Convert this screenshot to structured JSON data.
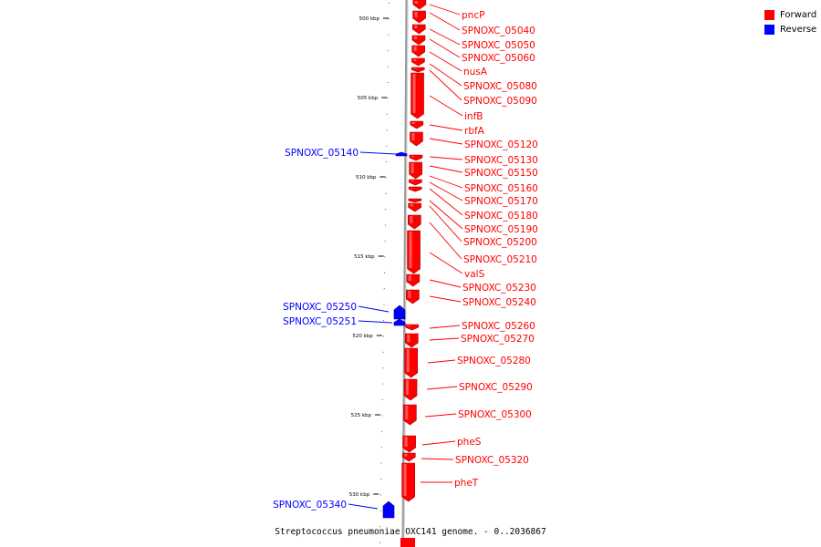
{
  "legend": {
    "forward": {
      "label": "Forward",
      "color": "#ff0000"
    },
    "reverse": {
      "label": "Reverse",
      "color": "#0000ff"
    }
  },
  "caption": "Streptococcus pneumoniae OXC141 genome. - 0..2036867",
  "scale": {
    "unit": "kbp",
    "ticks": [
      500,
      505,
      510,
      515,
      520,
      525,
      530
    ]
  },
  "genes": [
    {
      "name": "pncP",
      "strand": "forward"
    },
    {
      "name": "SPNOXC_05040",
      "strand": "forward"
    },
    {
      "name": "SPNOXC_05050",
      "strand": "forward"
    },
    {
      "name": "SPNOXC_05060",
      "strand": "forward"
    },
    {
      "name": "nusA",
      "strand": "forward"
    },
    {
      "name": "SPNOXC_05080",
      "strand": "forward"
    },
    {
      "name": "SPNOXC_05090",
      "strand": "forward"
    },
    {
      "name": "infB",
      "strand": "forward"
    },
    {
      "name": "rbfA",
      "strand": "forward"
    },
    {
      "name": "SPNOXC_05120",
      "strand": "forward"
    },
    {
      "name": "SPNOXC_05130",
      "strand": "forward"
    },
    {
      "name": "SPNOXC_05150",
      "strand": "forward"
    },
    {
      "name": "SPNOXC_05160",
      "strand": "forward"
    },
    {
      "name": "SPNOXC_05170",
      "strand": "forward"
    },
    {
      "name": "SPNOXC_05180",
      "strand": "forward"
    },
    {
      "name": "SPNOXC_05190",
      "strand": "forward"
    },
    {
      "name": "SPNOXC_05200",
      "strand": "forward"
    },
    {
      "name": "SPNOXC_05210",
      "strand": "forward"
    },
    {
      "name": "valS",
      "strand": "forward"
    },
    {
      "name": "SPNOXC_05230",
      "strand": "forward"
    },
    {
      "name": "SPNOXC_05240",
      "strand": "forward"
    },
    {
      "name": "SPNOXC_05260",
      "strand": "forward"
    },
    {
      "name": "SPNOXC_05270",
      "strand": "forward"
    },
    {
      "name": "SPNOXC_05280",
      "strand": "forward"
    },
    {
      "name": "SPNOXC_05290",
      "strand": "forward"
    },
    {
      "name": "SPNOXC_05300",
      "strand": "forward"
    },
    {
      "name": "pheS",
      "strand": "forward"
    },
    {
      "name": "SPNOXC_05320",
      "strand": "forward"
    },
    {
      "name": "pheT",
      "strand": "forward"
    },
    {
      "name": "SPNOXC_05140",
      "strand": "reverse"
    },
    {
      "name": "SPNOXC_05250",
      "strand": "reverse"
    },
    {
      "name": "SPNOXC_05251",
      "strand": "reverse"
    },
    {
      "name": "SPNOXC_05340",
      "strand": "reverse"
    }
  ]
}
